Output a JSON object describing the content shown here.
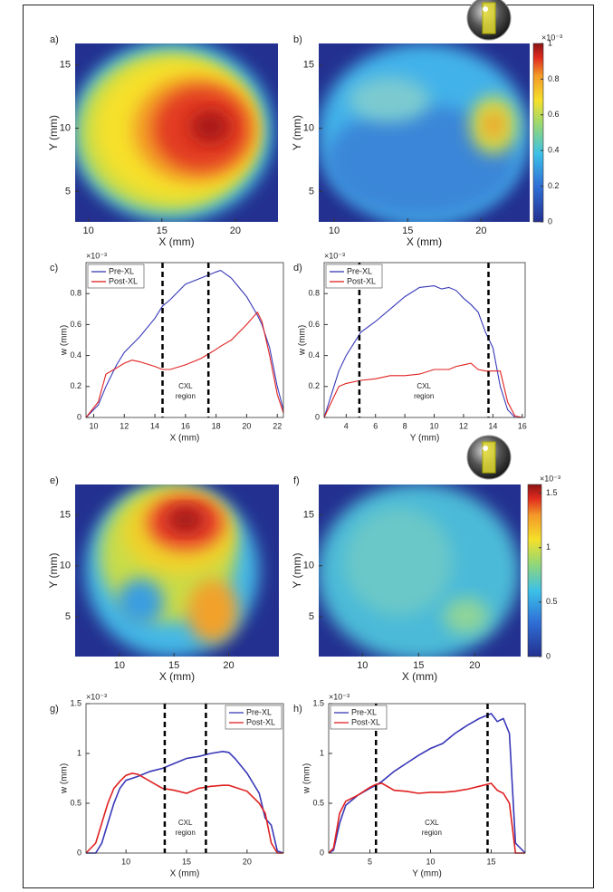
{
  "chart_data": [
    {
      "type": "heatmap",
      "label": "a)",
      "xlabel": "X (mm)",
      "ylabel": "Y (mm)",
      "xlim": [
        9.1,
        22.9
      ],
      "ylim": [
        2.6,
        16.7
      ],
      "xticks": [
        10,
        15,
        20
      ],
      "yticks": [
        5,
        10,
        15
      ]
    },
    {
      "type": "heatmap",
      "label": "b)",
      "xlabel": "X (mm)",
      "ylabel": "Y (mm)",
      "xlim": [
        8.95,
        23.3
      ],
      "ylim": [
        2.6,
        16.7
      ],
      "xticks": [
        10,
        15,
        20
      ],
      "yticks": [
        5,
        10,
        15
      ],
      "colorbar": {
        "clim": [
          0,
          1
        ],
        "ticks": [
          0,
          0.2,
          0.4,
          0.6,
          0.8,
          1
        ],
        "exponent": "×10⁻³"
      }
    },
    {
      "type": "line",
      "label": "c)",
      "xlabel": "X (mm)",
      "ylabel": "w (mm)",
      "exponent": "×10⁻³",
      "legend": "upper left",
      "xlim": [
        9.5,
        22.4
      ],
      "ylim": [
        0,
        1
      ],
      "xticks": [
        10,
        12,
        14,
        16,
        18,
        20,
        22
      ],
      "yticks": [
        0,
        0.2,
        0.4,
        0.6,
        0.8
      ],
      "vlines": [
        14.5,
        17.5
      ],
      "annotation": [
        "CXL",
        "region"
      ],
      "x": [
        9.5,
        10.3,
        10.8,
        11.5,
        12,
        12.5,
        13,
        14,
        14.5,
        15,
        16,
        17,
        17.5,
        18,
        18.3,
        19,
        20,
        20.7,
        21,
        21.5,
        22,
        22.4
      ],
      "series": [
        {
          "name": "Pre-XL",
          "color": "#3838b8",
          "values": [
            0,
            0.08,
            0.2,
            0.34,
            0.42,
            0.47,
            0.52,
            0.64,
            0.72,
            0.76,
            0.86,
            0.9,
            0.92,
            0.94,
            0.95,
            0.9,
            0.78,
            0.66,
            0.6,
            0.45,
            0.2,
            0.05
          ]
        },
        {
          "name": "Post-XL",
          "color": "#e02020",
          "values": [
            0,
            0.1,
            0.28,
            0.32,
            0.35,
            0.37,
            0.36,
            0.33,
            0.31,
            0.31,
            0.34,
            0.38,
            0.41,
            0.44,
            0.46,
            0.5,
            0.6,
            0.68,
            0.62,
            0.4,
            0.15,
            0.03
          ]
        }
      ]
    },
    {
      "type": "line",
      "label": "d)",
      "xlabel": "Y (mm)",
      "ylabel": "w (mm)",
      "exponent": "×10⁻³",
      "legend": "upper left",
      "xlim": [
        2.5,
        16.2
      ],
      "ylim": [
        0,
        1
      ],
      "xticks": [
        4,
        6,
        8,
        10,
        12,
        14,
        16
      ],
      "yticks": [
        0,
        0.2,
        0.4,
        0.6,
        0.8
      ],
      "vlines": [
        4.9,
        13.7
      ],
      "annotation": [
        "CXL",
        "region"
      ],
      "x": [
        2.5,
        3,
        3.5,
        4,
        5,
        6,
        7,
        8,
        9,
        10,
        10.5,
        11,
        11.5,
        12,
        12.5,
        13,
        13.5,
        14,
        14.5,
        15,
        15.5,
        16
      ],
      "series": [
        {
          "name": "Pre-XL",
          "color": "#3838b8",
          "values": [
            0,
            0.15,
            0.3,
            0.4,
            0.55,
            0.62,
            0.7,
            0.78,
            0.84,
            0.85,
            0.83,
            0.84,
            0.82,
            0.77,
            0.73,
            0.68,
            0.55,
            0.45,
            0.2,
            0.05,
            0,
            0
          ]
        },
        {
          "name": "Post-XL",
          "color": "#e02020",
          "values": [
            0,
            0.1,
            0.2,
            0.22,
            0.24,
            0.25,
            0.27,
            0.27,
            0.28,
            0.31,
            0.31,
            0.31,
            0.33,
            0.34,
            0.35,
            0.31,
            0.3,
            0.3,
            0.3,
            0.1,
            0.01,
            0
          ]
        }
      ]
    },
    {
      "type": "heatmap",
      "label": "e)",
      "xlabel": "X (mm)",
      "ylabel": "Y (mm)",
      "xlim": [
        5.95,
        24.6
      ],
      "ylim": [
        1.07,
        18.0
      ],
      "xticks": [
        10,
        15,
        20
      ],
      "yticks": [
        5,
        10,
        15
      ]
    },
    {
      "type": "heatmap",
      "label": "f)",
      "xlabel": "X (mm)",
      "ylabel": "Y (mm)",
      "xlim": [
        6.1,
        24.1
      ],
      "ylim": [
        1.07,
        18.0
      ],
      "xticks": [
        10,
        15,
        20
      ],
      "yticks": [
        5,
        10,
        15
      ],
      "colorbar": {
        "clim": [
          0,
          1.58
        ],
        "ticks": [
          0,
          0.5,
          1,
          1.5
        ],
        "exponent": "×10⁻³"
      }
    },
    {
      "type": "line",
      "label": "g)",
      "xlabel": "X (mm)",
      "ylabel": "w (mm)",
      "exponent": "×10⁻³",
      "legend": "upper right",
      "xlim": [
        6.7,
        23
      ],
      "ylim": [
        0,
        1.5
      ],
      "xticks": [
        10,
        15,
        20
      ],
      "yticks": [
        0,
        0.5,
        1,
        1.5
      ],
      "vlines": [
        13.2,
        16.6
      ],
      "annotation": [
        "CXL",
        "region"
      ],
      "x": [
        6.7,
        7.5,
        8,
        8.5,
        9,
        9.5,
        10,
        10.5,
        11,
        12,
        13,
        14,
        15,
        16,
        17,
        18,
        18.5,
        19,
        20,
        21,
        21.5,
        22,
        22.5,
        23
      ],
      "series": [
        {
          "name": "Pre-XL",
          "color": "#3838b8",
          "values": [
            0,
            0,
            0.1,
            0.3,
            0.5,
            0.65,
            0.73,
            0.75,
            0.77,
            0.82,
            0.85,
            0.9,
            0.95,
            0.97,
            1,
            1.02,
            1.01,
            0.95,
            0.8,
            0.6,
            0.35,
            0.28,
            0.02,
            0
          ]
        },
        {
          "name": "Post-XL",
          "color": "#e02020",
          "values": [
            0,
            0.1,
            0.3,
            0.5,
            0.65,
            0.72,
            0.78,
            0.8,
            0.79,
            0.72,
            0.65,
            0.63,
            0.6,
            0.65,
            0.67,
            0.68,
            0.68,
            0.66,
            0.62,
            0.5,
            0.4,
            0.1,
            0,
            0
          ]
        }
      ]
    },
    {
      "type": "line",
      "label": "h)",
      "xlabel": "Y (mm)",
      "ylabel": "w (mm)",
      "exponent": "×10⁻³",
      "legend": "upper left",
      "xlim": [
        1.6,
        17.8
      ],
      "ylim": [
        0,
        1.5
      ],
      "xticks": [
        5,
        10,
        15
      ],
      "yticks": [
        0,
        0.5,
        1,
        1.5
      ],
      "vlines": [
        5.5,
        14.7
      ],
      "annotation": [
        "CXL",
        "region"
      ],
      "x": [
        1.6,
        2,
        2.5,
        3,
        4,
        5,
        5.5,
        6,
        7,
        8,
        9,
        10,
        11,
        12,
        13,
        14,
        15,
        15.5,
        16,
        16.5,
        17,
        17.8
      ],
      "series": [
        {
          "name": "Pre-XL",
          "color": "#3838b8",
          "values": [
            0,
            0.03,
            0.3,
            0.48,
            0.58,
            0.65,
            0.68,
            0.72,
            0.82,
            0.9,
            0.98,
            1.05,
            1.1,
            1.2,
            1.28,
            1.35,
            1.4,
            1.32,
            1.35,
            1.2,
            0.1,
            0
          ]
        },
        {
          "name": "Post-XL",
          "color": "#e02020",
          "values": [
            0,
            0.05,
            0.4,
            0.52,
            0.58,
            0.66,
            0.69,
            0.7,
            0.63,
            0.62,
            0.6,
            0.61,
            0.61,
            0.62,
            0.64,
            0.67,
            0.7,
            0.63,
            0.6,
            0.5,
            0,
            0
          ]
        }
      ]
    }
  ]
}
